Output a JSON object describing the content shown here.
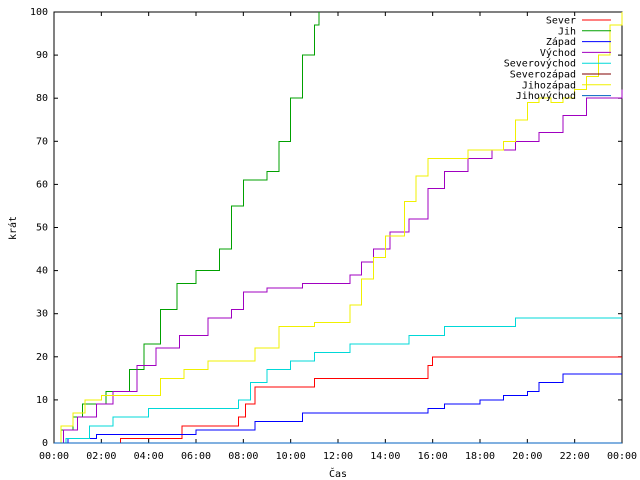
{
  "chart_data": {
    "type": "line",
    "xlabel": "Čas",
    "ylabel": "krát",
    "xlim": [
      0,
      24
    ],
    "ylim": [
      0,
      100
    ],
    "x_ticks": [
      0,
      2,
      4,
      6,
      8,
      10,
      12,
      14,
      16,
      18,
      20,
      22,
      24
    ],
    "x_tick_labels": [
      "00:00",
      "02:00",
      "04:00",
      "06:00",
      "08:00",
      "10:00",
      "12:00",
      "14:00",
      "16:00",
      "18:00",
      "20:00",
      "22:00",
      "00:00"
    ],
    "y_ticks": [
      0,
      10,
      20,
      30,
      40,
      50,
      60,
      70,
      80,
      90,
      100
    ],
    "y_tick_labels": [
      "0",
      "10",
      "20",
      "30",
      "40",
      "50",
      "60",
      "70",
      "80",
      "90",
      "100"
    ],
    "grid": false,
    "legend_position": "top-right",
    "series": [
      {
        "name": "Sever",
        "color": "#ff0000",
        "x": [
          0,
          2.8,
          5.4,
          7.8,
          8.1,
          8.5,
          9.5,
          11,
          13.5,
          15.8,
          16,
          24
        ],
        "y": [
          0,
          1,
          4,
          6,
          9,
          13,
          13,
          15,
          15,
          18,
          20,
          20
        ]
      },
      {
        "name": "Jih",
        "color": "#00a000",
        "x": [
          0,
          0.3,
          0.8,
          1.2,
          2.2,
          3.2,
          3.8,
          4.5,
          5.2,
          6.0,
          7.0,
          7.5,
          8.0,
          8.3,
          8.6,
          9.0,
          9.5,
          10.0,
          10.5,
          11.0,
          11.2
        ],
        "y": [
          0,
          3,
          6,
          9,
          12,
          17,
          23,
          31,
          37,
          40,
          45,
          55,
          61,
          61,
          61,
          63,
          70,
          80,
          90,
          97,
          100
        ]
      },
      {
        "name": "Západ",
        "color": "#0000ff",
        "x": [
          0,
          0.6,
          1.8,
          4.0,
          6.0,
          8.5,
          10.5,
          13.0,
          15.8,
          16.5,
          18.0,
          19.0,
          20.0,
          20.5,
          21.5,
          24
        ],
        "y": [
          0,
          1,
          2,
          2,
          3,
          5,
          7,
          7,
          8,
          9,
          10,
          11,
          12,
          14,
          16,
          16
        ]
      },
      {
        "name": "Východ",
        "color": "#a000c0",
        "x": [
          0,
          0.4,
          1.0,
          1.8,
          2.5,
          3.5,
          4.3,
          5.3,
          6.5,
          7.5,
          8.0,
          9.0,
          10.5,
          12.5,
          13.0,
          13.5,
          14.2,
          15.0,
          15.8,
          16.5,
          17.5,
          18.5,
          19.5,
          20.5,
          21.5,
          22.5,
          24
        ],
        "y": [
          0,
          3,
          6,
          9,
          12,
          18,
          22,
          25,
          29,
          31,
          35,
          36,
          37,
          39,
          42,
          45,
          49,
          52,
          59,
          63,
          66,
          68,
          70,
          72,
          76,
          80,
          82
        ]
      },
      {
        "name": "Severovýchod",
        "color": "#00d8d8",
        "x": [
          0,
          0.5,
          1.5,
          2.5,
          4.0,
          6.0,
          7.8,
          8.3,
          9.0,
          10.0,
          11.0,
          12.5,
          15.0,
          16.5,
          19.5,
          24
        ],
        "y": [
          0,
          1,
          4,
          6,
          8,
          8,
          10,
          14,
          17,
          19,
          21,
          23,
          25,
          27,
          29,
          29
        ]
      },
      {
        "name": "Severozápad",
        "color": "#800000",
        "x": [
          0,
          24
        ],
        "y": [
          0,
          0
        ]
      },
      {
        "name": "Jihozápad",
        "color": "#f0f000",
        "x": [
          0,
          0.3,
          0.8,
          1.3,
          2.0,
          3.0,
          4.5,
          5.5,
          6.5,
          8.0,
          8.5,
          9.5,
          11.0,
          12.0,
          12.5,
          13.0,
          13.5,
          14.0,
          14.8,
          15.3,
          15.8,
          16.5,
          17.5,
          18.5,
          19.0,
          19.5,
          20.0,
          20.5,
          21.0,
          21.5,
          22.0,
          22.5,
          23.0,
          23.5,
          24
        ],
        "y": [
          0,
          4,
          7,
          10,
          11,
          11,
          15,
          17,
          19,
          19,
          22,
          27,
          28,
          28,
          32,
          38,
          43,
          48,
          56,
          62,
          66,
          66,
          68,
          68,
          70,
          75,
          79,
          80,
          79,
          80,
          82,
          85,
          90,
          97,
          100
        ]
      },
      {
        "name": "Jihovýchod",
        "color": "#0060c0",
        "x": [
          0,
          24
        ],
        "y": [
          0,
          0
        ]
      }
    ]
  }
}
